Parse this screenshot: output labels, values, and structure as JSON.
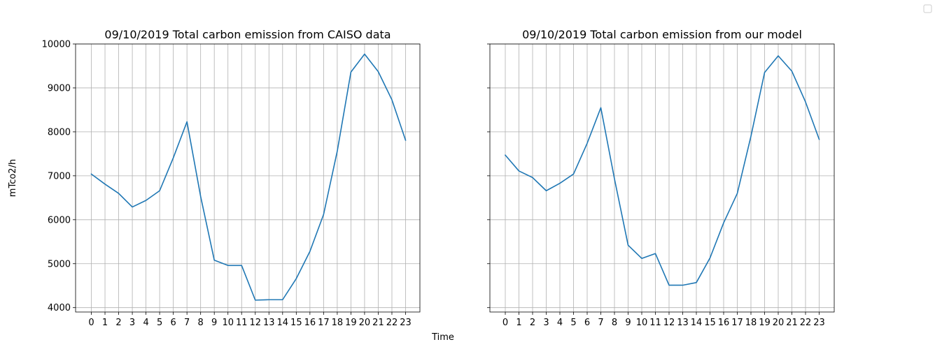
{
  "figure": {
    "xlabel": "Time",
    "ylabel": "mTco2/h",
    "colors": {
      "line": "#1f77b4",
      "grid": "#b0b0b0"
    },
    "legend": {
      "location": "top-right",
      "entries": []
    }
  },
  "chart_data": [
    {
      "type": "line",
      "title": "09/10/2019 Total carbon emission from CAISO data",
      "xlabel": "",
      "ylabel": "mTco2/h",
      "x": [
        0,
        1,
        2,
        3,
        4,
        5,
        6,
        7,
        8,
        9,
        10,
        11,
        12,
        13,
        14,
        15,
        16,
        17,
        18,
        19,
        20,
        21,
        22,
        23
      ],
      "series": [
        {
          "values": [
            7040,
            6810,
            6600,
            6290,
            6440,
            6660,
            7410,
            8230,
            6530,
            5080,
            4960,
            4960,
            4170,
            4180,
            4180,
            4660,
            5280,
            6120,
            7560,
            9360,
            9770,
            9370,
            8730,
            7810
          ]
        }
      ],
      "ylim": [
        3900,
        10000
      ],
      "yticks": [
        4000,
        5000,
        6000,
        7000,
        8000,
        9000,
        10000
      ],
      "grid": true
    },
    {
      "type": "line",
      "title": "09/10/2019 Total carbon emission from our model",
      "xlabel": "",
      "ylabel": "",
      "x": [
        0,
        1,
        2,
        3,
        4,
        5,
        6,
        7,
        8,
        9,
        10,
        11,
        12,
        13,
        14,
        15,
        16,
        17,
        18,
        19,
        20,
        21,
        22,
        23
      ],
      "series": [
        {
          "values": [
            7470,
            7110,
            6960,
            6660,
            6830,
            7040,
            7740,
            8550,
            6930,
            5420,
            5120,
            5230,
            4510,
            4510,
            4570,
            5130,
            5930,
            6600,
            7900,
            9350,
            9730,
            9380,
            8680,
            7830
          ]
        }
      ],
      "ylim": [
        3900,
        10000
      ],
      "yticks": [
        4000,
        5000,
        6000,
        7000,
        8000,
        9000,
        10000
      ],
      "show_ytick_labels": false,
      "grid": true
    }
  ]
}
